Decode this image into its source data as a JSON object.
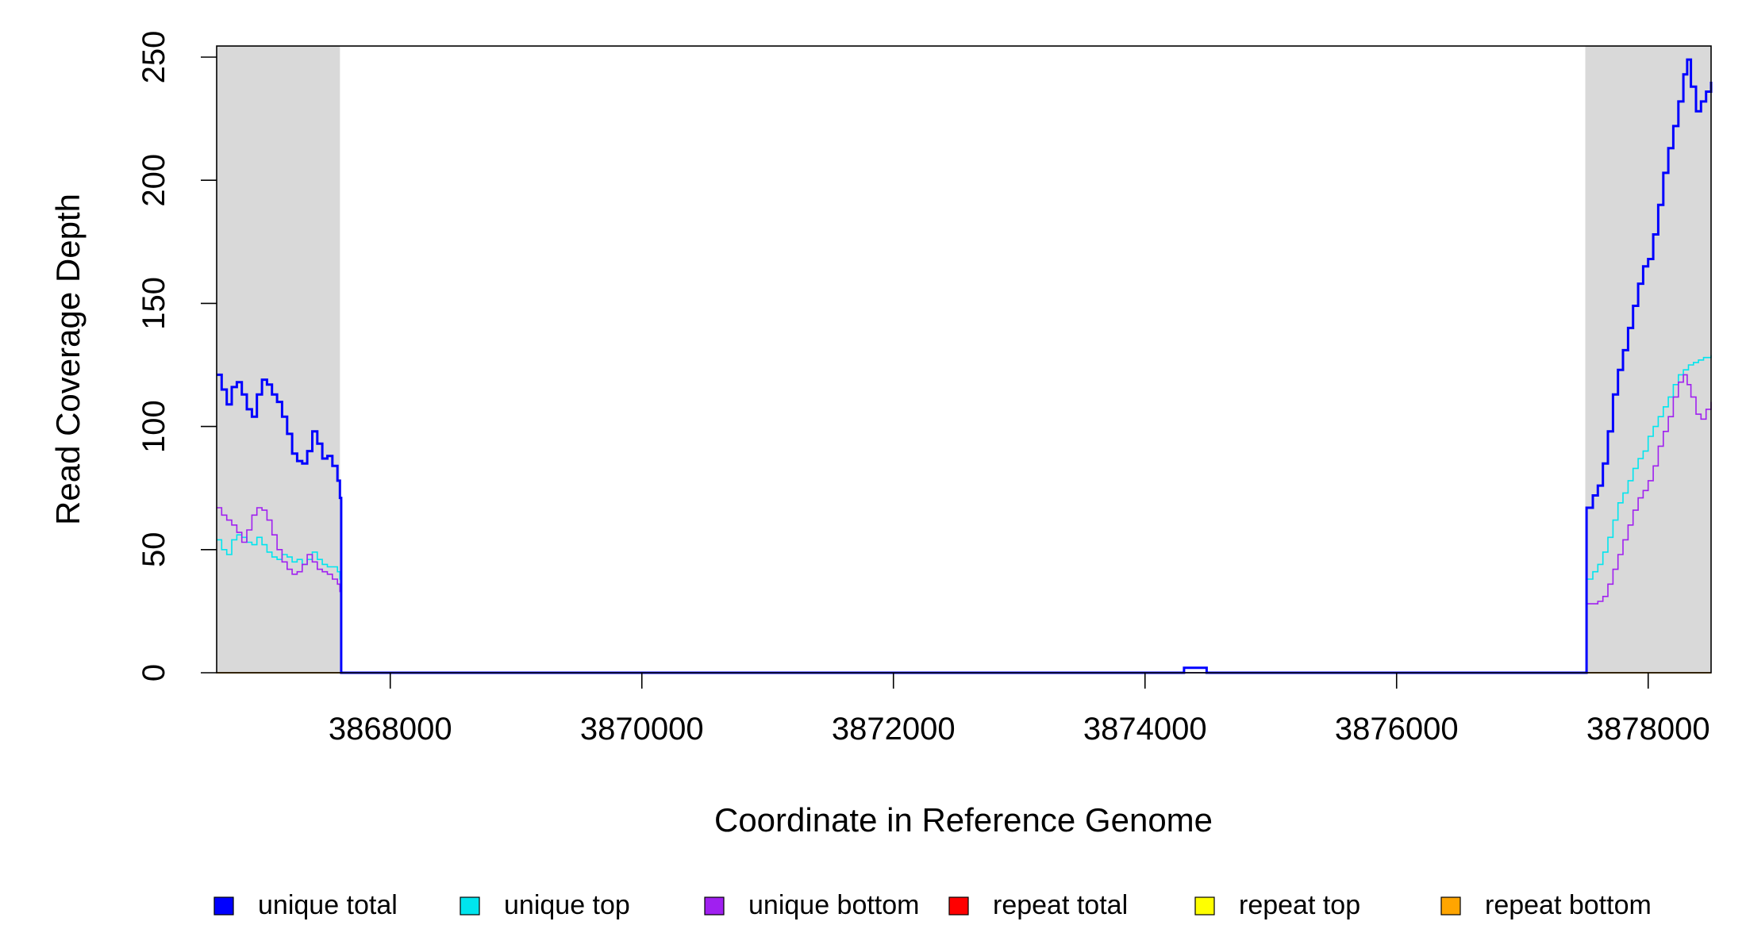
{
  "chart_data": {
    "type": "line",
    "xlabel": "Coordinate in Reference Genome",
    "ylabel": "Read Coverage Depth",
    "xlim": [
      3866620,
      3878500
    ],
    "ylim": [
      0,
      255
    ],
    "x_ticks": [
      3868000,
      3870000,
      3872000,
      3874000,
      3876000,
      3878000
    ],
    "x_tick_labels": [
      "3868000",
      "3870000",
      "3872000",
      "3874000",
      "3876000",
      "3878000"
    ],
    "y_ticks": [
      0,
      50,
      100,
      150,
      200,
      250
    ],
    "y_tick_labels": [
      "0",
      "50",
      "100",
      "150",
      "200",
      "250"
    ],
    "shaded_regions": [
      {
        "from": 3866620,
        "to": 3867600,
        "color": "#d9d9d9"
      },
      {
        "from": 3877500,
        "to": 3878500,
        "color": "#d9d9d9"
      }
    ],
    "legend_position": "bottom",
    "series": [
      {
        "name": "unique total",
        "color": "#0000ff",
        "width": 3,
        "points": [
          [
            3866620,
            121
          ],
          [
            3866660,
            115
          ],
          [
            3866700,
            109
          ],
          [
            3866740,
            116
          ],
          [
            3866780,
            118
          ],
          [
            3866820,
            113
          ],
          [
            3866860,
            107
          ],
          [
            3866900,
            104
          ],
          [
            3866940,
            113
          ],
          [
            3866980,
            119
          ],
          [
            3867020,
            117
          ],
          [
            3867060,
            113
          ],
          [
            3867100,
            110
          ],
          [
            3867140,
            104
          ],
          [
            3867180,
            97
          ],
          [
            3867220,
            89
          ],
          [
            3867260,
            86
          ],
          [
            3867300,
            85
          ],
          [
            3867340,
            90
          ],
          [
            3867380,
            98
          ],
          [
            3867420,
            93
          ],
          [
            3867460,
            87
          ],
          [
            3867500,
            88
          ],
          [
            3867540,
            84
          ],
          [
            3867580,
            78
          ],
          [
            3867600,
            71
          ],
          [
            3867610,
            0
          ],
          [
            3874300,
            0
          ],
          [
            3874310,
            2
          ],
          [
            3874480,
            2
          ],
          [
            3874490,
            0
          ],
          [
            3877500,
            0
          ],
          [
            3877510,
            67
          ],
          [
            3877560,
            72
          ],
          [
            3877600,
            76
          ],
          [
            3877640,
            85
          ],
          [
            3877680,
            98
          ],
          [
            3877720,
            113
          ],
          [
            3877760,
            123
          ],
          [
            3877800,
            131
          ],
          [
            3877840,
            140
          ],
          [
            3877880,
            149
          ],
          [
            3877920,
            158
          ],
          [
            3877960,
            165
          ],
          [
            3878000,
            168
          ],
          [
            3878040,
            178
          ],
          [
            3878080,
            190
          ],
          [
            3878120,
            203
          ],
          [
            3878160,
            213
          ],
          [
            3878200,
            222
          ],
          [
            3878240,
            232
          ],
          [
            3878280,
            243
          ],
          [
            3878310,
            249
          ],
          [
            3878340,
            238
          ],
          [
            3878380,
            228
          ],
          [
            3878420,
            232
          ],
          [
            3878460,
            236
          ],
          [
            3878500,
            240
          ]
        ]
      },
      {
        "name": "unique top",
        "color": "#00e5ee",
        "width": 1.6,
        "points": [
          [
            3866620,
            54
          ],
          [
            3866660,
            50
          ],
          [
            3866700,
            48
          ],
          [
            3866740,
            54
          ],
          [
            3866780,
            56
          ],
          [
            3866820,
            55
          ],
          [
            3866860,
            53
          ],
          [
            3866900,
            52
          ],
          [
            3866940,
            55
          ],
          [
            3866980,
            52
          ],
          [
            3867020,
            49
          ],
          [
            3867060,
            47
          ],
          [
            3867100,
            46
          ],
          [
            3867140,
            48
          ],
          [
            3867180,
            47
          ],
          [
            3867220,
            45
          ],
          [
            3867260,
            46
          ],
          [
            3867300,
            44
          ],
          [
            3867340,
            46
          ],
          [
            3867380,
            49
          ],
          [
            3867420,
            46
          ],
          [
            3867460,
            44
          ],
          [
            3867500,
            43
          ],
          [
            3867540,
            43
          ],
          [
            3867580,
            41
          ],
          [
            3867600,
            38
          ],
          [
            3867610,
            0
          ],
          [
            3877500,
            0
          ],
          [
            3877510,
            38
          ],
          [
            3877560,
            41
          ],
          [
            3877600,
            44
          ],
          [
            3877640,
            49
          ],
          [
            3877680,
            55
          ],
          [
            3877720,
            62
          ],
          [
            3877760,
            69
          ],
          [
            3877800,
            73
          ],
          [
            3877840,
            78
          ],
          [
            3877880,
            83
          ],
          [
            3877920,
            87
          ],
          [
            3877960,
            90
          ],
          [
            3878000,
            96
          ],
          [
            3878040,
            100
          ],
          [
            3878080,
            104
          ],
          [
            3878120,
            108
          ],
          [
            3878160,
            112
          ],
          [
            3878200,
            117
          ],
          [
            3878240,
            121
          ],
          [
            3878280,
            123
          ],
          [
            3878320,
            125
          ],
          [
            3878360,
            126
          ],
          [
            3878400,
            127
          ],
          [
            3878440,
            128
          ],
          [
            3878500,
            129
          ]
        ]
      },
      {
        "name": "unique bottom",
        "color": "#a020f0",
        "width": 1.6,
        "points": [
          [
            3866620,
            67
          ],
          [
            3866660,
            64
          ],
          [
            3866700,
            62
          ],
          [
            3866740,
            60
          ],
          [
            3866780,
            57
          ],
          [
            3866820,
            53
          ],
          [
            3866860,
            58
          ],
          [
            3866900,
            64
          ],
          [
            3866940,
            67
          ],
          [
            3866980,
            66
          ],
          [
            3867020,
            62
          ],
          [
            3867060,
            56
          ],
          [
            3867100,
            50
          ],
          [
            3867140,
            45
          ],
          [
            3867180,
            42
          ],
          [
            3867220,
            40
          ],
          [
            3867260,
            41
          ],
          [
            3867300,
            44
          ],
          [
            3867340,
            48
          ],
          [
            3867380,
            45
          ],
          [
            3867420,
            42
          ],
          [
            3867460,
            41
          ],
          [
            3867500,
            40
          ],
          [
            3867540,
            38
          ],
          [
            3867580,
            36
          ],
          [
            3867600,
            33
          ],
          [
            3867610,
            0
          ],
          [
            3877500,
            0
          ],
          [
            3877510,
            28
          ],
          [
            3877560,
            28
          ],
          [
            3877600,
            29
          ],
          [
            3877640,
            31
          ],
          [
            3877680,
            36
          ],
          [
            3877720,
            42
          ],
          [
            3877760,
            48
          ],
          [
            3877800,
            54
          ],
          [
            3877840,
            60
          ],
          [
            3877880,
            66
          ],
          [
            3877920,
            71
          ],
          [
            3877960,
            74
          ],
          [
            3878000,
            78
          ],
          [
            3878040,
            84
          ],
          [
            3878080,
            92
          ],
          [
            3878120,
            98
          ],
          [
            3878160,
            104
          ],
          [
            3878200,
            112
          ],
          [
            3878240,
            118
          ],
          [
            3878280,
            121
          ],
          [
            3878310,
            117
          ],
          [
            3878340,
            112
          ],
          [
            3878380,
            105
          ],
          [
            3878420,
            103
          ],
          [
            3878460,
            107
          ],
          [
            3878500,
            110
          ]
        ]
      },
      {
        "name": "repeat total",
        "color": "#ff0000",
        "width": 1.6,
        "points": [
          [
            3866620,
            0
          ],
          [
            3878500,
            0
          ]
        ]
      },
      {
        "name": "repeat top",
        "color": "#ffff00",
        "width": 1.6,
        "points": [
          [
            3866620,
            0
          ],
          [
            3878500,
            0
          ]
        ]
      },
      {
        "name": "repeat bottom",
        "color": "#ffa500",
        "width": 1.6,
        "points": [
          [
            3866620,
            0
          ],
          [
            3878500,
            0
          ]
        ]
      }
    ]
  }
}
